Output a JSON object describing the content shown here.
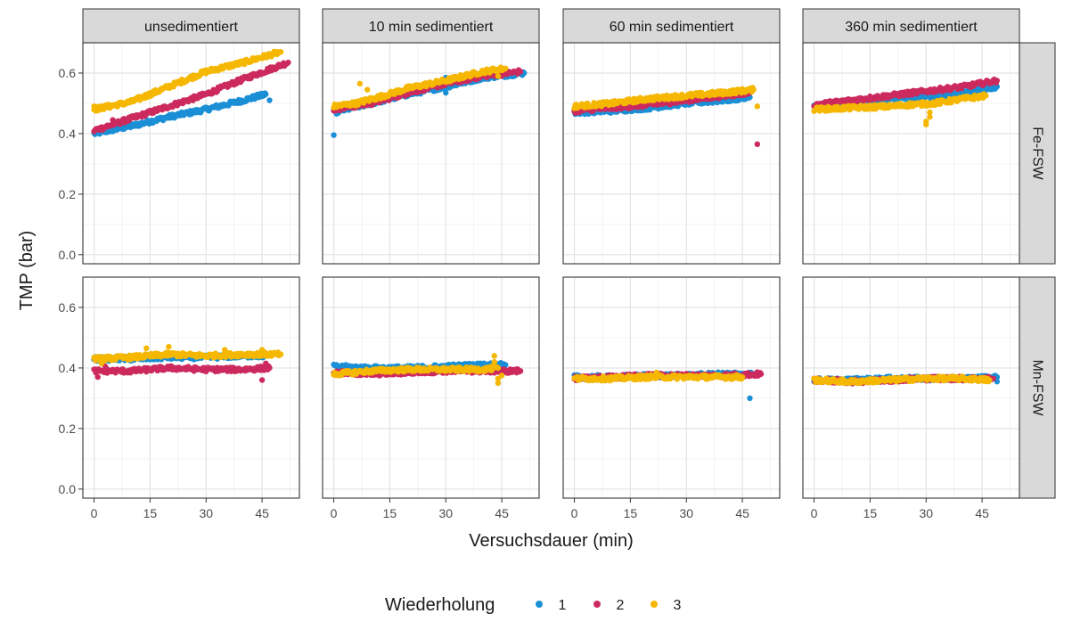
{
  "chart_data": {
    "type": "scatter",
    "facet_columns": [
      "unsedimentiert",
      "10 min sedimentiert",
      "60 min sedimentiert",
      "360 min sedimentiert"
    ],
    "facet_rows": [
      "Fe-FSW",
      "Mn-FSW"
    ],
    "xlabel": "Versuchsdauer (min)",
    "ylabel": "TMP (bar)",
    "xlim": [
      -3,
      55
    ],
    "ylim": [
      -0.03,
      0.7
    ],
    "x_ticks": [
      0,
      15,
      30,
      45
    ],
    "x_tick_labels": [
      "0",
      "15",
      "30",
      "45"
    ],
    "y_ticks": [
      0.0,
      0.2,
      0.4,
      0.6
    ],
    "y_tick_labels": [
      "0.0",
      "0.2",
      "0.4",
      "0.6"
    ],
    "grid": true,
    "legend": {
      "title": "Wiederholung",
      "position": "bottom",
      "entries": [
        {
          "label": "1",
          "color": "#1b8fd6"
        },
        {
          "label": "2",
          "color": "#cc2a5e"
        },
        {
          "label": "3",
          "color": "#f5b700"
        }
      ]
    },
    "panels": [
      {
        "row": "Fe-FSW",
        "col": "unsedimentiert",
        "series": [
          {
            "name": "1",
            "points": [
              [
                0,
                0.4
              ],
              [
                10,
                0.425
              ],
              [
                20,
                0.455
              ],
              [
                30,
                0.48
              ],
              [
                40,
                0.51
              ],
              [
                46,
                0.53
              ]
            ],
            "outliers": [
              [
                47,
                0.51
              ]
            ]
          },
          {
            "name": "2",
            "points": [
              [
                0,
                0.41
              ],
              [
                10,
                0.45
              ],
              [
                20,
                0.49
              ],
              [
                30,
                0.53
              ],
              [
                40,
                0.58
              ],
              [
                52,
                0.635
              ]
            ],
            "outliers": [
              [
                5,
                0.445
              ]
            ]
          },
          {
            "name": "3",
            "points": [
              [
                0,
                0.48
              ],
              [
                10,
                0.505
              ],
              [
                20,
                0.555
              ],
              [
                30,
                0.605
              ],
              [
                40,
                0.635
              ],
              [
                50,
                0.67
              ]
            ],
            "outliers": [
              [
                0,
                0.49
              ]
            ]
          }
        ]
      },
      {
        "row": "Fe-FSW",
        "col": "10 min sedimentiert",
        "series": [
          {
            "name": "1",
            "points": [
              [
                0,
                0.47
              ],
              [
                10,
                0.5
              ],
              [
                20,
                0.53
              ],
              [
                30,
                0.555
              ],
              [
                40,
                0.585
              ],
              [
                51,
                0.6
              ]
            ],
            "outliers": [
              [
                0,
                0.395
              ],
              [
                30,
                0.535
              ],
              [
                30,
                0.585
              ]
            ]
          },
          {
            "name": "2",
            "points": [
              [
                0,
                0.48
              ],
              [
                10,
                0.5
              ],
              [
                20,
                0.535
              ],
              [
                30,
                0.565
              ],
              [
                40,
                0.59
              ],
              [
                50,
                0.605
              ]
            ],
            "outliers": []
          },
          {
            "name": "3",
            "points": [
              [
                0,
                0.49
              ],
              [
                6,
                0.5
              ],
              [
                12,
                0.52
              ],
              [
                20,
                0.55
              ],
              [
                30,
                0.575
              ],
              [
                40,
                0.605
              ],
              [
                46,
                0.615
              ]
            ],
            "outliers": [
              [
                7,
                0.565
              ],
              [
                9,
                0.545
              ],
              [
                44,
                0.59
              ]
            ]
          }
        ]
      },
      {
        "row": "Fe-FSW",
        "col": "60 min sedimentiert",
        "series": [
          {
            "name": "1",
            "points": [
              [
                0,
                0.47
              ],
              [
                10,
                0.475
              ],
              [
                20,
                0.485
              ],
              [
                30,
                0.5
              ],
              [
                40,
                0.51
              ],
              [
                47,
                0.52
              ]
            ],
            "outliers": []
          },
          {
            "name": "2",
            "points": [
              [
                0,
                0.475
              ],
              [
                10,
                0.485
              ],
              [
                20,
                0.495
              ],
              [
                30,
                0.51
              ],
              [
                40,
                0.525
              ],
              [
                47,
                0.535
              ]
            ],
            "outliers": [
              [
                49,
                0.365
              ]
            ]
          },
          {
            "name": "3",
            "points": [
              [
                0,
                0.49
              ],
              [
                10,
                0.5
              ],
              [
                20,
                0.515
              ],
              [
                30,
                0.525
              ],
              [
                40,
                0.535
              ],
              [
                48,
                0.545
              ]
            ],
            "outliers": [
              [
                49,
                0.49
              ]
            ]
          }
        ]
      },
      {
        "row": "Fe-FSW",
        "col": "360 min sedimentiert",
        "series": [
          {
            "name": "1",
            "points": [
              [
                0,
                0.49
              ],
              [
                10,
                0.5
              ],
              [
                20,
                0.515
              ],
              [
                30,
                0.52
              ],
              [
                40,
                0.535
              ],
              [
                49,
                0.555
              ]
            ],
            "outliers": []
          },
          {
            "name": "2",
            "points": [
              [
                0,
                0.495
              ],
              [
                10,
                0.51
              ],
              [
                20,
                0.525
              ],
              [
                30,
                0.54
              ],
              [
                40,
                0.555
              ],
              [
                49,
                0.575
              ]
            ],
            "outliers": []
          },
          {
            "name": "3",
            "points": [
              [
                0,
                0.48
              ],
              [
                10,
                0.485
              ],
              [
                20,
                0.49
              ],
              [
                25,
                0.495
              ],
              [
                32,
                0.5
              ],
              [
                40,
                0.515
              ],
              [
                46,
                0.525
              ]
            ],
            "outliers": [
              [
                30,
                0.44
              ],
              [
                30,
                0.43
              ],
              [
                31,
                0.455
              ],
              [
                31,
                0.47
              ],
              [
                30,
                0.5
              ]
            ]
          }
        ]
      },
      {
        "row": "Mn-FSW",
        "col": "unsedimentiert",
        "series": [
          {
            "name": "1",
            "points": [
              [
                0,
                0.43
              ],
              [
                10,
                0.43
              ],
              [
                20,
                0.435
              ],
              [
                30,
                0.435
              ],
              [
                40,
                0.44
              ],
              [
                46,
                0.44
              ]
            ],
            "outliers": []
          },
          {
            "name": "2",
            "points": [
              [
                0,
                0.39
              ],
              [
                10,
                0.39
              ],
              [
                20,
                0.4
              ],
              [
                30,
                0.395
              ],
              [
                40,
                0.395
              ],
              [
                47,
                0.4
              ]
            ],
            "outliers": [
              [
                1,
                0.37
              ],
              [
                45,
                0.36
              ],
              [
                46,
                0.415
              ],
              [
                3,
                0.405
              ]
            ]
          },
          {
            "name": "3",
            "points": [
              [
                0,
                0.43
              ],
              [
                10,
                0.435
              ],
              [
                20,
                0.445
              ],
              [
                30,
                0.44
              ],
              [
                40,
                0.445
              ],
              [
                50,
                0.445
              ]
            ],
            "outliers": [
              [
                14,
                0.465
              ],
              [
                20,
                0.47
              ],
              [
                35,
                0.46
              ],
              [
                45,
                0.46
              ],
              [
                2,
                0.415
              ]
            ]
          }
        ]
      },
      {
        "row": "Mn-FSW",
        "col": "10 min sedimentiert",
        "series": [
          {
            "name": "1",
            "points": [
              [
                0,
                0.405
              ],
              [
                10,
                0.4
              ],
              [
                20,
                0.4
              ],
              [
                30,
                0.405
              ],
              [
                40,
                0.41
              ],
              [
                46,
                0.41
              ]
            ],
            "outliers": []
          },
          {
            "name": "2",
            "points": [
              [
                0,
                0.385
              ],
              [
                10,
                0.38
              ],
              [
                20,
                0.385
              ],
              [
                30,
                0.39
              ],
              [
                40,
                0.39
              ],
              [
                50,
                0.39
              ]
            ],
            "outliers": []
          },
          {
            "name": "3",
            "points": [
              [
                0,
                0.38
              ],
              [
                10,
                0.39
              ],
              [
                20,
                0.395
              ],
              [
                30,
                0.395
              ],
              [
                40,
                0.395
              ],
              [
                44,
                0.4
              ]
            ],
            "outliers": [
              [
                43,
                0.44
              ],
              [
                44,
                0.35
              ],
              [
                44,
                0.365
              ],
              [
                43,
                0.42
              ],
              [
                45,
                0.375
              ]
            ]
          }
        ]
      },
      {
        "row": "Mn-FSW",
        "col": "60 min sedimentiert",
        "series": [
          {
            "name": "1",
            "points": [
              [
                0,
                0.37
              ],
              [
                10,
                0.37
              ],
              [
                20,
                0.375
              ],
              [
                30,
                0.375
              ],
              [
                40,
                0.38
              ],
              [
                48,
                0.38
              ]
            ],
            "outliers": [
              [
                47,
                0.3
              ]
            ]
          },
          {
            "name": "2",
            "points": [
              [
                0,
                0.365
              ],
              [
                10,
                0.37
              ],
              [
                20,
                0.375
              ],
              [
                30,
                0.375
              ],
              [
                40,
                0.375
              ],
              [
                50,
                0.38
              ]
            ],
            "outliers": []
          },
          {
            "name": "3",
            "points": [
              [
                0,
                0.365
              ],
              [
                10,
                0.365
              ],
              [
                20,
                0.37
              ],
              [
                30,
                0.37
              ],
              [
                40,
                0.37
              ],
              [
                45,
                0.37
              ]
            ],
            "outliers": [
              [
                22,
                0.385
              ]
            ]
          }
        ]
      },
      {
        "row": "Mn-FSW",
        "col": "360 min sedimentiert",
        "series": [
          {
            "name": "1",
            "points": [
              [
                0,
                0.36
              ],
              [
                10,
                0.36
              ],
              [
                20,
                0.365
              ],
              [
                30,
                0.365
              ],
              [
                40,
                0.365
              ],
              [
                49,
                0.37
              ]
            ],
            "outliers": [
              [
                49,
                0.355
              ]
            ]
          },
          {
            "name": "2",
            "points": [
              [
                0,
                0.36
              ],
              [
                10,
                0.355
              ],
              [
                20,
                0.36
              ],
              [
                30,
                0.365
              ],
              [
                40,
                0.365
              ],
              [
                48,
                0.365
              ]
            ],
            "outliers": []
          },
          {
            "name": "3",
            "points": [
              [
                0,
                0.36
              ],
              [
                10,
                0.355
              ],
              [
                20,
                0.36
              ],
              [
                30,
                0.365
              ],
              [
                40,
                0.365
              ],
              [
                47,
                0.36
              ]
            ],
            "outliers": [
              [
                8,
                0.35
              ]
            ]
          }
        ]
      }
    ]
  }
}
